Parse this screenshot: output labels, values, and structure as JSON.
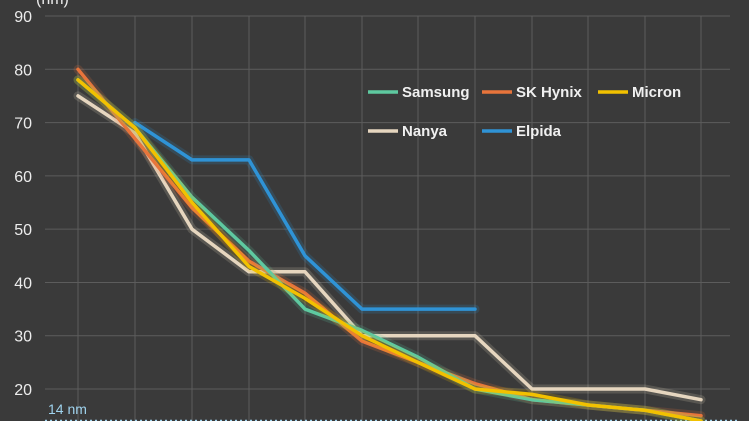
{
  "chart_data": {
    "type": "line",
    "title": "",
    "xlabel": "",
    "ylabel": "(nm)",
    "ylim": [
      14,
      90
    ],
    "yticks": [
      20,
      30,
      40,
      50,
      60,
      70,
      80,
      90
    ],
    "ytick_labels": [
      "20",
      "30",
      "40",
      "50",
      "60",
      "70",
      "80",
      "90"
    ],
    "grid": true,
    "legend_position": "top-right",
    "x": [
      0,
      1,
      2,
      3,
      4,
      5,
      6,
      7,
      8,
      9,
      10,
      11
    ],
    "series": [
      {
        "name": "Samsung",
        "color": "#5ec9a0",
        "values": [
          78,
          69,
          56,
          46,
          35,
          31,
          26,
          20,
          18,
          17,
          16,
          14
        ]
      },
      {
        "name": "SK Hynix",
        "color": "#e8743b",
        "values": [
          80,
          67,
          54,
          44,
          38,
          29,
          25,
          21,
          18,
          17,
          16,
          15
        ]
      },
      {
        "name": "Micron",
        "color": "#f2c100",
        "values": [
          78,
          69,
          55,
          43,
          37,
          30,
          25,
          20,
          19,
          17,
          16,
          14
        ]
      },
      {
        "name": "Nanya",
        "color": "#e6d6bf",
        "values": [
          75,
          68,
          50,
          42,
          42,
          30,
          30,
          30,
          20,
          20,
          20,
          18
        ]
      },
      {
        "name": "Elpida",
        "color": "#2f93d6",
        "values": [
          null,
          70,
          63,
          63,
          45,
          35,
          35,
          35,
          null,
          null,
          null,
          null
        ]
      }
    ],
    "reference_line": {
      "value": 14,
      "label": "14 nm",
      "color": "#9fd3ee"
    }
  }
}
